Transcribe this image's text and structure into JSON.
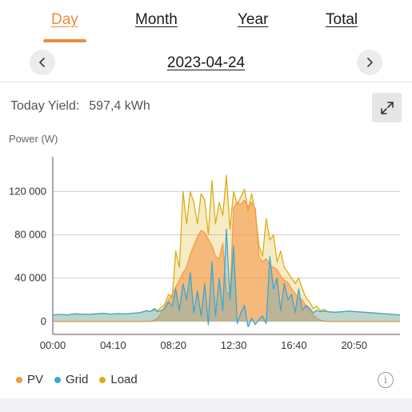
{
  "tabs": [
    {
      "label": "Day",
      "active": true
    },
    {
      "label": "Month",
      "active": false
    },
    {
      "label": "Year",
      "active": false
    },
    {
      "label": "Total",
      "active": false
    }
  ],
  "date": "2023-04-24",
  "yield": {
    "label": "Today Yield:",
    "value": "597,4 kWh"
  },
  "colors": {
    "accent": "#f08a3c",
    "pv": "#f59a4a",
    "grid": "#3aa7d6",
    "load": "#dcae12"
  },
  "icons": {
    "prev": "chevron-left-icon",
    "next": "chevron-right-icon",
    "expand": "expand-icon",
    "info": "info-icon"
  },
  "chart_data": {
    "type": "area",
    "ylabel": "Power (W)",
    "xlabel": "",
    "x_ticks": [
      "00:00",
      "04:10",
      "08:20",
      "12:30",
      "16:40",
      "20:50"
    ],
    "y_ticks": [
      "0",
      "40 000",
      "80 000",
      "120 000"
    ],
    "ylim": [
      -12000,
      152000
    ],
    "xlim": [
      "00:00",
      "24:00"
    ],
    "grid": true,
    "legend_position": "bottom-left",
    "x": [
      "00:00",
      "00:30",
      "01:00",
      "01:30",
      "02:00",
      "02:30",
      "03:00",
      "03:30",
      "04:00",
      "04:30",
      "05:00",
      "05:30",
      "06:00",
      "06:15",
      "06:30",
      "06:45",
      "07:00",
      "07:15",
      "07:30",
      "07:45",
      "08:00",
      "08:15",
      "08:30",
      "08:45",
      "09:00",
      "09:15",
      "09:30",
      "09:45",
      "10:00",
      "10:15",
      "10:30",
      "10:45",
      "11:00",
      "11:15",
      "11:30",
      "11:45",
      "12:00",
      "12:15",
      "12:30",
      "12:45",
      "13:00",
      "13:15",
      "13:30",
      "13:45",
      "14:00",
      "14:15",
      "14:30",
      "14:45",
      "15:00",
      "15:15",
      "15:30",
      "15:45",
      "16:00",
      "16:15",
      "16:30",
      "16:45",
      "17:00",
      "17:15",
      "17:30",
      "17:45",
      "18:00",
      "18:15",
      "18:30",
      "18:45",
      "19:00",
      "19:30",
      "20:00",
      "20:30",
      "21:00",
      "21:30",
      "22:00",
      "22:30",
      "23:00",
      "23:30",
      "24:00"
    ],
    "series": [
      {
        "name": "PV",
        "values": [
          0,
          0,
          0,
          0,
          0,
          0,
          0,
          0,
          0,
          0,
          0,
          0,
          0,
          0,
          0,
          0,
          1000,
          3000,
          8000,
          14000,
          20000,
          25000,
          32000,
          38000,
          45000,
          50000,
          62000,
          70000,
          78000,
          84000,
          82000,
          76000,
          70000,
          60000,
          58000,
          72000,
          28000,
          24000,
          105000,
          110000,
          108000,
          112000,
          106000,
          110000,
          104000,
          60000,
          55000,
          58000,
          52000,
          50000,
          48000,
          42000,
          38000,
          36000,
          30000,
          26000,
          22000,
          20000,
          14000,
          10000,
          6000,
          3000,
          1000,
          500,
          0,
          0,
          0,
          0,
          0,
          0,
          0,
          0,
          0,
          0,
          0
        ]
      },
      {
        "name": "Grid",
        "values": [
          6000,
          6500,
          6000,
          7000,
          6800,
          6500,
          7000,
          7500,
          6800,
          7200,
          7000,
          7500,
          8000,
          9000,
          10000,
          9000,
          11000,
          9000,
          10000,
          12000,
          18000,
          14000,
          30000,
          10000,
          35000,
          20000,
          45000,
          8000,
          28000,
          5000,
          35000,
          -3000,
          55000,
          5000,
          40000,
          10000,
          85000,
          20000,
          70000,
          -2000,
          8000,
          15000,
          -5000,
          3000,
          -3000,
          2000,
          5000,
          -2000,
          60000,
          30000,
          40000,
          10000,
          35000,
          20000,
          25000,
          8000,
          30000,
          10000,
          15000,
          12000,
          8000,
          10000,
          9000,
          9500,
          9000,
          8500,
          9000,
          9500,
          9000,
          8500,
          8000,
          7500,
          7000,
          6500,
          6000
        ]
      },
      {
        "name": "Load",
        "values": [
          6000,
          6500,
          6000,
          7000,
          6800,
          6500,
          7000,
          7500,
          6800,
          7200,
          7000,
          7500,
          8000,
          9000,
          10000,
          9000,
          12000,
          10000,
          13000,
          16000,
          25000,
          22000,
          65000,
          50000,
          120000,
          90000,
          120000,
          110000,
          90000,
          118000,
          112000,
          80000,
          130000,
          90000,
          110000,
          98000,
          135000,
          85000,
          120000,
          108000,
          115000,
          122000,
          102000,
          118000,
          100000,
          70000,
          60000,
          95000,
          75000,
          80000,
          55000,
          65000,
          50000,
          45000,
          40000,
          35000,
          40000,
          30000,
          22000,
          18000,
          12000,
          14000,
          10000,
          11000,
          9000,
          8500,
          9000,
          9500,
          9000,
          8500,
          8000,
          7500,
          7000,
          6500,
          6000
        ]
      }
    ]
  }
}
